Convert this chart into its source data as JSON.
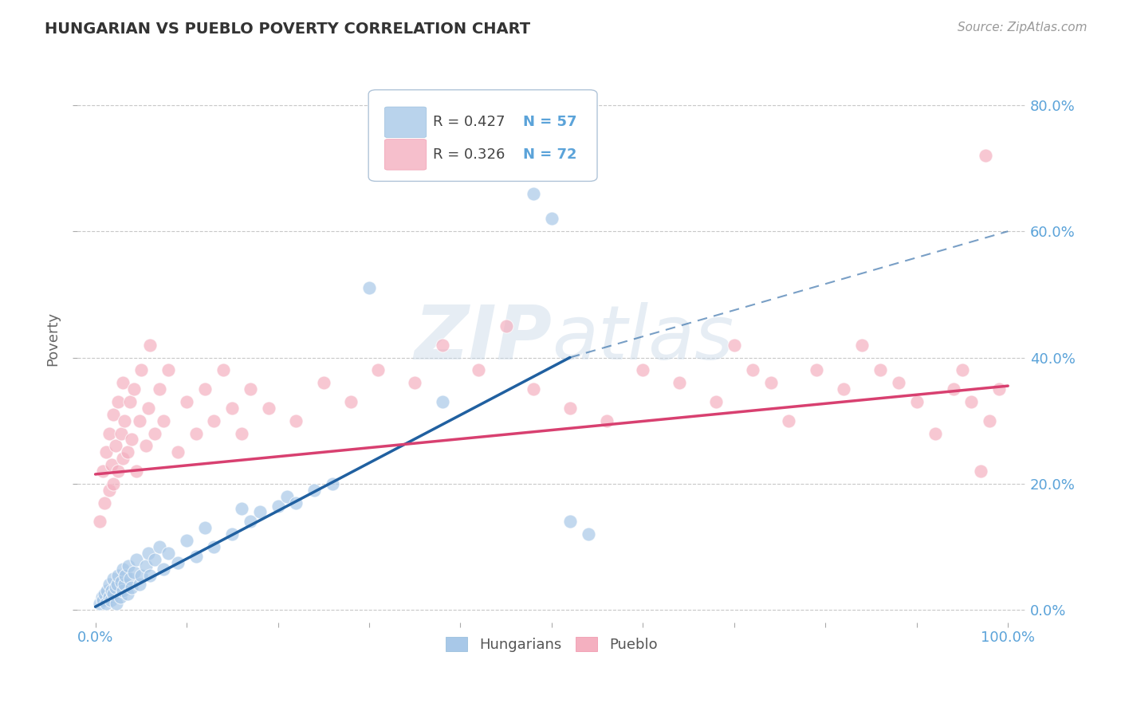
{
  "title": "HUNGARIAN VS PUEBLO POVERTY CORRELATION CHART",
  "source": "Source: ZipAtlas.com",
  "ylabel": "Poverty",
  "xlim": [
    -0.02,
    1.02
  ],
  "ylim": [
    -0.02,
    0.88
  ],
  "xtick_positions": [
    0.0,
    0.1,
    0.2,
    0.3,
    0.4,
    0.5,
    0.6,
    0.7,
    0.8,
    0.9,
    1.0
  ],
  "xtick_labels_show": {
    "0.0": "0.0%",
    "1.0": "100.0%"
  },
  "ytick_vals": [
    0.0,
    0.2,
    0.4,
    0.6,
    0.8
  ],
  "ytick_labels": [
    "0.0%",
    "20.0%",
    "40.0%",
    "60.0%",
    "80.0%"
  ],
  "grid_color": "#c8c8c8",
  "background_color": "#ffffff",
  "tick_color": "#5ba3d9",
  "blue_color": "#a8c8e8",
  "pink_color": "#f4b0c0",
  "blue_line_color": "#2060a0",
  "pink_line_color": "#d84070",
  "blue_line_solid": [
    [
      0.0,
      0.005
    ],
    [
      0.52,
      0.4
    ]
  ],
  "blue_line_dashed": [
    [
      0.52,
      0.4
    ],
    [
      1.0,
      0.6
    ]
  ],
  "pink_line": [
    [
      0.0,
      0.215
    ],
    [
      1.0,
      0.355
    ]
  ],
  "legend_label1": "Hungarians",
  "legend_label2": "Pueblo",
  "blue_scatter": [
    [
      0.005,
      0.01
    ],
    [
      0.007,
      0.02
    ],
    [
      0.008,
      0.015
    ],
    [
      0.01,
      0.025
    ],
    [
      0.012,
      0.01
    ],
    [
      0.013,
      0.03
    ],
    [
      0.015,
      0.02
    ],
    [
      0.015,
      0.04
    ],
    [
      0.017,
      0.015
    ],
    [
      0.018,
      0.03
    ],
    [
      0.02,
      0.025
    ],
    [
      0.02,
      0.05
    ],
    [
      0.022,
      0.035
    ],
    [
      0.023,
      0.01
    ],
    [
      0.024,
      0.04
    ],
    [
      0.025,
      0.055
    ],
    [
      0.027,
      0.02
    ],
    [
      0.028,
      0.045
    ],
    [
      0.03,
      0.03
    ],
    [
      0.03,
      0.065
    ],
    [
      0.032,
      0.04
    ],
    [
      0.033,
      0.055
    ],
    [
      0.035,
      0.025
    ],
    [
      0.036,
      0.07
    ],
    [
      0.038,
      0.05
    ],
    [
      0.04,
      0.035
    ],
    [
      0.042,
      0.06
    ],
    [
      0.045,
      0.08
    ],
    [
      0.048,
      0.04
    ],
    [
      0.05,
      0.055
    ],
    [
      0.055,
      0.07
    ],
    [
      0.058,
      0.09
    ],
    [
      0.06,
      0.055
    ],
    [
      0.065,
      0.08
    ],
    [
      0.07,
      0.1
    ],
    [
      0.075,
      0.065
    ],
    [
      0.08,
      0.09
    ],
    [
      0.09,
      0.075
    ],
    [
      0.1,
      0.11
    ],
    [
      0.11,
      0.085
    ],
    [
      0.12,
      0.13
    ],
    [
      0.13,
      0.1
    ],
    [
      0.15,
      0.12
    ],
    [
      0.16,
      0.16
    ],
    [
      0.17,
      0.14
    ],
    [
      0.18,
      0.155
    ],
    [
      0.2,
      0.165
    ],
    [
      0.21,
      0.18
    ],
    [
      0.22,
      0.17
    ],
    [
      0.24,
      0.19
    ],
    [
      0.26,
      0.2
    ],
    [
      0.3,
      0.51
    ],
    [
      0.38,
      0.33
    ],
    [
      0.48,
      0.66
    ],
    [
      0.5,
      0.62
    ],
    [
      0.52,
      0.14
    ],
    [
      0.54,
      0.12
    ]
  ],
  "pink_scatter": [
    [
      0.005,
      0.14
    ],
    [
      0.008,
      0.22
    ],
    [
      0.01,
      0.17
    ],
    [
      0.012,
      0.25
    ],
    [
      0.015,
      0.19
    ],
    [
      0.015,
      0.28
    ],
    [
      0.018,
      0.23
    ],
    [
      0.02,
      0.31
    ],
    [
      0.02,
      0.2
    ],
    [
      0.022,
      0.26
    ],
    [
      0.025,
      0.33
    ],
    [
      0.025,
      0.22
    ],
    [
      0.028,
      0.28
    ],
    [
      0.03,
      0.36
    ],
    [
      0.03,
      0.24
    ],
    [
      0.032,
      0.3
    ],
    [
      0.035,
      0.25
    ],
    [
      0.038,
      0.33
    ],
    [
      0.04,
      0.27
    ],
    [
      0.042,
      0.35
    ],
    [
      0.045,
      0.22
    ],
    [
      0.048,
      0.3
    ],
    [
      0.05,
      0.38
    ],
    [
      0.055,
      0.26
    ],
    [
      0.058,
      0.32
    ],
    [
      0.06,
      0.42
    ],
    [
      0.065,
      0.28
    ],
    [
      0.07,
      0.35
    ],
    [
      0.075,
      0.3
    ],
    [
      0.08,
      0.38
    ],
    [
      0.09,
      0.25
    ],
    [
      0.1,
      0.33
    ],
    [
      0.11,
      0.28
    ],
    [
      0.12,
      0.35
    ],
    [
      0.13,
      0.3
    ],
    [
      0.14,
      0.38
    ],
    [
      0.15,
      0.32
    ],
    [
      0.16,
      0.28
    ],
    [
      0.17,
      0.35
    ],
    [
      0.19,
      0.32
    ],
    [
      0.22,
      0.3
    ],
    [
      0.25,
      0.36
    ],
    [
      0.28,
      0.33
    ],
    [
      0.31,
      0.38
    ],
    [
      0.35,
      0.36
    ],
    [
      0.38,
      0.42
    ],
    [
      0.42,
      0.38
    ],
    [
      0.45,
      0.45
    ],
    [
      0.48,
      0.35
    ],
    [
      0.52,
      0.32
    ],
    [
      0.56,
      0.3
    ],
    [
      0.6,
      0.38
    ],
    [
      0.64,
      0.36
    ],
    [
      0.68,
      0.33
    ],
    [
      0.7,
      0.42
    ],
    [
      0.72,
      0.38
    ],
    [
      0.74,
      0.36
    ],
    [
      0.76,
      0.3
    ],
    [
      0.79,
      0.38
    ],
    [
      0.82,
      0.35
    ],
    [
      0.84,
      0.42
    ],
    [
      0.86,
      0.38
    ],
    [
      0.88,
      0.36
    ],
    [
      0.9,
      0.33
    ],
    [
      0.92,
      0.28
    ],
    [
      0.94,
      0.35
    ],
    [
      0.95,
      0.38
    ],
    [
      0.96,
      0.33
    ],
    [
      0.97,
      0.22
    ],
    [
      0.975,
      0.72
    ],
    [
      0.98,
      0.3
    ],
    [
      0.99,
      0.35
    ]
  ]
}
